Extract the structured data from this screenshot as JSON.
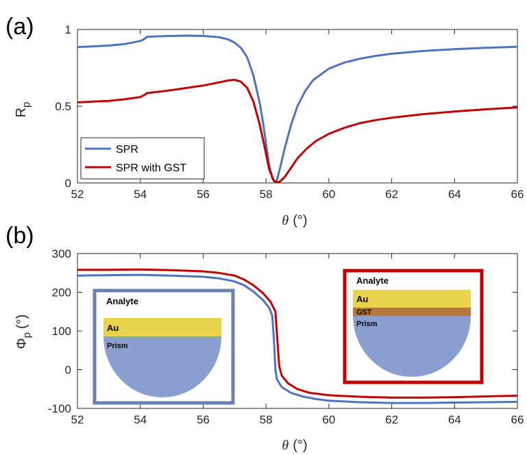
{
  "chart_data": [
    {
      "type": "line",
      "panel_label": "(a)",
      "xlabel_symbol": "θ",
      "xlabel_unit": "(°)",
      "ylabel_main": "R",
      "ylabel_sub": "p",
      "xlim": [
        52,
        66
      ],
      "ylim": [
        0,
        1
      ],
      "xticks": [
        52,
        54,
        56,
        58,
        60,
        62,
        64,
        66
      ],
      "yticks": [
        0,
        0.5,
        1
      ],
      "ytick_labels": [
        "0",
        "0.5",
        "1"
      ],
      "legend": "bottom-left",
      "grid": false,
      "series": [
        {
          "name": "SPR",
          "color": "#4f72bf",
          "points": [
            [
              52.0,
              0.885
            ],
            [
              52.5,
              0.89
            ],
            [
              53.0,
              0.895
            ],
            [
              53.5,
              0.905
            ],
            [
              54.0,
              0.925
            ],
            [
              54.15,
              0.94
            ],
            [
              54.2,
              0.952
            ],
            [
              54.5,
              0.955
            ],
            [
              55.0,
              0.958
            ],
            [
              55.5,
              0.96
            ],
            [
              56.0,
              0.958
            ],
            [
              56.5,
              0.95
            ],
            [
              56.8,
              0.935
            ],
            [
              57.0,
              0.915
            ],
            [
              57.2,
              0.88
            ],
            [
              57.4,
              0.82
            ],
            [
              57.6,
              0.7
            ],
            [
              57.8,
              0.52
            ],
            [
              57.9,
              0.4
            ],
            [
              58.0,
              0.26
            ],
            [
              58.1,
              0.12
            ],
            [
              58.2,
              0.03
            ],
            [
              58.28,
              0.005
            ],
            [
              58.35,
              0.02
            ],
            [
              58.45,
              0.1
            ],
            [
              58.6,
              0.23
            ],
            [
              58.8,
              0.38
            ],
            [
              59.0,
              0.5
            ],
            [
              59.25,
              0.6
            ],
            [
              59.5,
              0.67
            ],
            [
              60.0,
              0.745
            ],
            [
              60.5,
              0.785
            ],
            [
              61.0,
              0.81
            ],
            [
              61.5,
              0.828
            ],
            [
              62.0,
              0.842
            ],
            [
              63.0,
              0.86
            ],
            [
              64.0,
              0.872
            ],
            [
              65.0,
              0.881
            ],
            [
              66.0,
              0.887
            ]
          ]
        },
        {
          "name": "SPR with GST",
          "color": "#c00000",
          "points": [
            [
              52.0,
              0.525
            ],
            [
              52.5,
              0.53
            ],
            [
              53.0,
              0.535
            ],
            [
              53.5,
              0.545
            ],
            [
              54.0,
              0.56
            ],
            [
              54.15,
              0.575
            ],
            [
              54.2,
              0.585
            ],
            [
              54.5,
              0.592
            ],
            [
              55.0,
              0.605
            ],
            [
              55.5,
              0.62
            ],
            [
              56.0,
              0.635
            ],
            [
              56.5,
              0.655
            ],
            [
              56.8,
              0.668
            ],
            [
              57.0,
              0.672
            ],
            [
              57.2,
              0.66
            ],
            [
              57.4,
              0.62
            ],
            [
              57.6,
              0.53
            ],
            [
              57.8,
              0.38
            ],
            [
              57.95,
              0.24
            ],
            [
              58.1,
              0.09
            ],
            [
              58.25,
              0.015
            ],
            [
              58.35,
              0.003
            ],
            [
              58.45,
              0.01
            ],
            [
              58.6,
              0.04
            ],
            [
              58.8,
              0.1
            ],
            [
              59.0,
              0.16
            ],
            [
              59.3,
              0.225
            ],
            [
              59.6,
              0.275
            ],
            [
              60.0,
              0.32
            ],
            [
              60.5,
              0.36
            ],
            [
              61.0,
              0.39
            ],
            [
              61.5,
              0.41
            ],
            [
              62.0,
              0.425
            ],
            [
              63.0,
              0.448
            ],
            [
              64.0,
              0.465
            ],
            [
              65.0,
              0.48
            ],
            [
              66.0,
              0.492
            ]
          ]
        }
      ]
    },
    {
      "type": "line",
      "panel_label": "(b)",
      "xlabel_symbol": "θ",
      "xlabel_unit": "(°)",
      "ylabel_main": "Φ",
      "ylabel_sub": "p",
      "ylabel_unit": "(°)",
      "xlim": [
        52,
        66
      ],
      "ylim": [
        -100,
        300
      ],
      "xticks": [
        52,
        54,
        56,
        58,
        60,
        62,
        64,
        66
      ],
      "yticks": [
        -100,
        0,
        100,
        200,
        300
      ],
      "grid": false,
      "series": [
        {
          "color": "#4f72bf",
          "points": [
            [
              52.0,
              243
            ],
            [
              53.0,
              244
            ],
            [
              54.0,
              245
            ],
            [
              55.0,
              243
            ],
            [
              56.0,
              240
            ],
            [
              56.5,
              236
            ],
            [
              57.0,
              228
            ],
            [
              57.3,
              218
            ],
            [
              57.6,
              202
            ],
            [
              57.9,
              180
            ],
            [
              58.1,
              160
            ],
            [
              58.2,
              140
            ],
            [
              58.25,
              80
            ],
            [
              58.3,
              0
            ],
            [
              58.35,
              -25
            ],
            [
              58.5,
              -45
            ],
            [
              58.8,
              -60
            ],
            [
              59.2,
              -70
            ],
            [
              59.6,
              -76
            ],
            [
              60.0,
              -80
            ],
            [
              61.0,
              -84
            ],
            [
              62.0,
              -86
            ],
            [
              63.0,
              -86
            ],
            [
              64.0,
              -85
            ],
            [
              65.0,
              -84
            ],
            [
              66.0,
              -83
            ]
          ]
        },
        {
          "color": "#c00000",
          "points": [
            [
              52.0,
              258
            ],
            [
              53.0,
              258
            ],
            [
              54.0,
              259
            ],
            [
              55.0,
              257
            ],
            [
              56.0,
              254
            ],
            [
              56.5,
              250
            ],
            [
              57.0,
              243
            ],
            [
              57.3,
              233
            ],
            [
              57.6,
              218
            ],
            [
              57.9,
              198
            ],
            [
              58.15,
              175
            ],
            [
              58.3,
              150
            ],
            [
              58.35,
              90
            ],
            [
              58.42,
              10
            ],
            [
              58.5,
              -15
            ],
            [
              58.7,
              -35
            ],
            [
              59.0,
              -50
            ],
            [
              59.4,
              -60
            ],
            [
              60.0,
              -66
            ],
            [
              61.0,
              -70
            ],
            [
              62.0,
              -72
            ],
            [
              63.0,
              -72
            ],
            [
              64.0,
              -71
            ],
            [
              65.0,
              -69
            ],
            [
              66.0,
              -67
            ]
          ]
        }
      ]
    }
  ],
  "insets": {
    "left": {
      "analyte": "Analyte",
      "au": "Au",
      "prism": "Prism",
      "frame_color": "#6a80b0"
    },
    "right": {
      "analyte": "Analyte",
      "au": "Au",
      "gst": "GST",
      "prism": "Prism",
      "frame_color": "#c00000"
    },
    "colors": {
      "au": "#e8d24a",
      "gst": "#b5773d",
      "prism": "#8a9fcf"
    }
  }
}
